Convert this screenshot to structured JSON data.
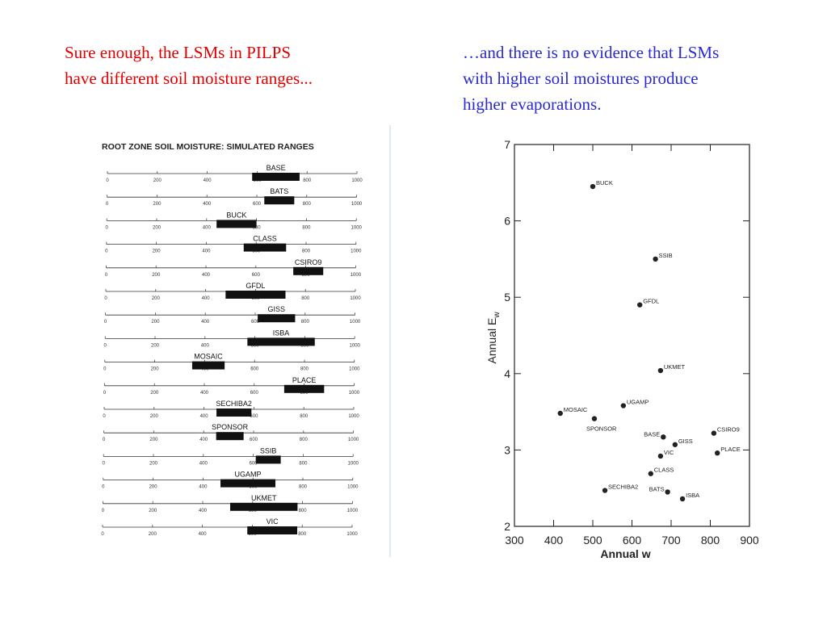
{
  "texts": {
    "left": [
      "Sure enough, the LSMs in PILPS",
      "have different soil moisture ranges..."
    ],
    "right": [
      "…and there is no evidence that LSMs",
      "with higher soil moistures produce",
      "higher evaporations."
    ]
  },
  "chart_data": [
    {
      "type": "range",
      "title": "ROOT ZONE SOIL MOISTURE: SIMULATED RANGES",
      "categories": [
        "BASE",
        "BATS",
        "BUCK",
        "CLASS",
        "CSIRO9",
        "GFDL",
        "GISS",
        "ISBA",
        "MOSAIC",
        "PLACE",
        "SECHIBA2",
        "SPONSOR",
        "SSIB",
        "UGAMP",
        "UKMET",
        "VIC"
      ],
      "low": [
        580,
        630,
        440,
        550,
        750,
        480,
        610,
        570,
        350,
        720,
        450,
        450,
        610,
        470,
        510,
        580
      ],
      "high": [
        770,
        750,
        600,
        720,
        870,
        720,
        760,
        840,
        480,
        880,
        590,
        560,
        710,
        690,
        780,
        780
      ],
      "color": "#111111",
      "xlim": [
        0,
        1000
      ],
      "xticks": [
        0,
        200,
        400,
        600,
        800,
        1000
      ]
    },
    {
      "type": "scatter",
      "xlabel": "Annual w",
      "ylabel": "Annual E",
      "ylabel_sub": "w",
      "labels": [
        "BUCK",
        "SSIB",
        "GFDL",
        "UKMET",
        "UGAMP",
        "MOSAIC",
        "SPONSOR",
        "BASE",
        "GISS",
        "VIC",
        "CSIRO9",
        "PLACE",
        "CLASS",
        "BATS",
        "SECHIBA2",
        "ISBA"
      ],
      "x": [
        500,
        660,
        620,
        673,
        578,
        417,
        504,
        680,
        710,
        673,
        809,
        818,
        648,
        691,
        531,
        729
      ],
      "y": [
        6.45,
        5.5,
        4.9,
        4.04,
        3.58,
        3.48,
        3.41,
        3.17,
        3.07,
        2.92,
        3.22,
        2.96,
        2.69,
        2.45,
        2.47,
        2.36
      ],
      "color": "#222222",
      "xlim": [
        300,
        900
      ],
      "xticks": [
        300,
        400,
        500,
        600,
        700,
        800,
        900
      ],
      "ylim": [
        2,
        7
      ],
      "yticks": [
        2,
        3,
        4,
        5,
        6,
        7
      ]
    }
  ]
}
